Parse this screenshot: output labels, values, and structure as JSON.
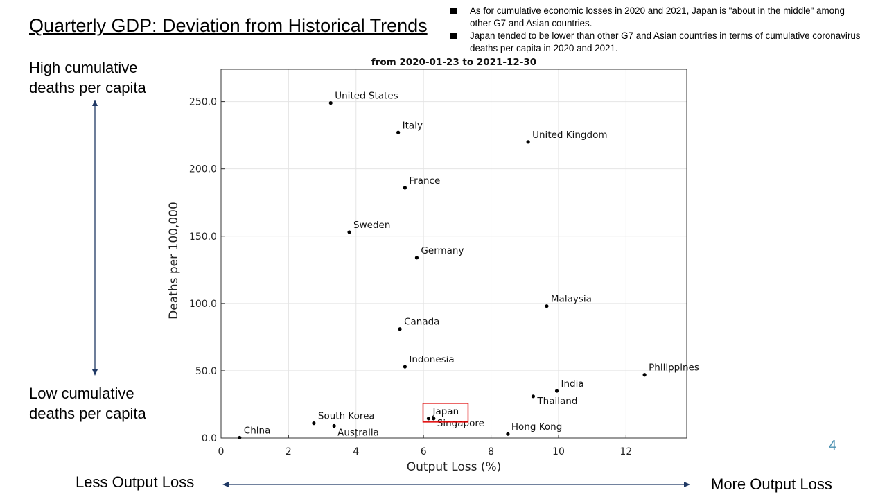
{
  "slide": {
    "title": "Quarterly GDP: Deviation from Historical Trends",
    "bullets": [
      "As for cumulative economic losses in 2020 and 2021, Japan is \"about in the middle\" among other G7 and Asian countries.",
      "Japan tended to be lower than other G7 and Asian countries in terms of cumulative coronavirus deaths per capita in 2020 and 2021."
    ],
    "left_top_label": "High cumulative deaths per capita",
    "left_bottom_label": "Low cumulative deaths per capita",
    "bottom_left_label": "Less Output Loss",
    "bottom_right_label": "More Output Loss",
    "page_number": "4",
    "arrow_color": "#1f3864",
    "highlight_color": "#e00000"
  },
  "chart_data": {
    "type": "scatter",
    "title": "from 2020-01-23 to 2021-12-30",
    "xlabel": "Output Loss (%)",
    "ylabel": "Deaths per 100,000",
    "xlim": [
      0,
      13.8
    ],
    "ylim": [
      0,
      274
    ],
    "xticks": [
      0,
      2,
      4,
      6,
      8,
      10,
      12
    ],
    "yticks": [
      0,
      50,
      100,
      150,
      200,
      250
    ],
    "ytick_labels": [
      "0.0",
      "50.0",
      "100.0",
      "150.0",
      "200.0",
      "250.0"
    ],
    "grid": true,
    "highlighted": "Japan",
    "points": [
      {
        "label": "United States",
        "x": 3.25,
        "y": 249
      },
      {
        "label": "Italy",
        "x": 5.25,
        "y": 227
      },
      {
        "label": "United Kingdom",
        "x": 9.1,
        "y": 220
      },
      {
        "label": "France",
        "x": 5.45,
        "y": 186
      },
      {
        "label": "Sweden",
        "x": 3.8,
        "y": 153
      },
      {
        "label": "Germany",
        "x": 5.8,
        "y": 134
      },
      {
        "label": "Malaysia",
        "x": 9.65,
        "y": 98
      },
      {
        "label": "Canada",
        "x": 5.3,
        "y": 81
      },
      {
        "label": "Indonesia",
        "x": 5.45,
        "y": 53
      },
      {
        "label": "Philippines",
        "x": 12.55,
        "y": 47
      },
      {
        "label": "India",
        "x": 9.95,
        "y": 35
      },
      {
        "label": "Thailand",
        "x": 9.25,
        "y": 31
      },
      {
        "label": "Japan",
        "x": 6.15,
        "y": 14.5
      },
      {
        "label": "Singapore",
        "x": 6.3,
        "y": 14.5
      },
      {
        "label": "South Korea",
        "x": 2.75,
        "y": 11
      },
      {
        "label": "Australia",
        "x": 3.35,
        "y": 9
      },
      {
        "label": "Hong Kong",
        "x": 8.5,
        "y": 3
      },
      {
        "label": "China",
        "x": 0.55,
        "y": 0.3
      }
    ]
  }
}
